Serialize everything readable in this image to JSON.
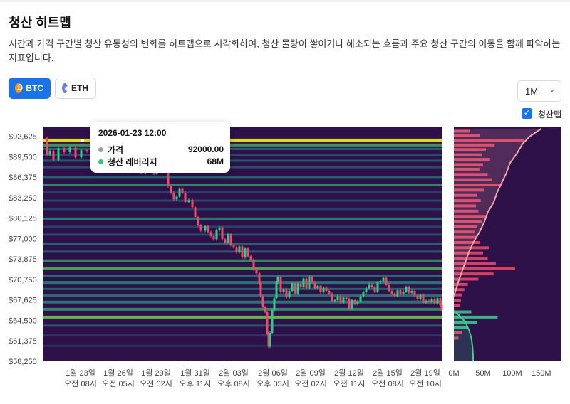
{
  "header": {
    "title": "청산 히트맵",
    "description": "시간과 가격 구간별 청산 유동성의 변화를 히트맵으로 시각화하여, 청산 물량이 쌓이거나 해소되는 흐름과 주요 청산 구간의 이동을 함께 파악하는 지표입니다."
  },
  "controls": {
    "coins": [
      {
        "label": "BTC",
        "icon": "btc-icon",
        "active": true
      },
      {
        "label": "ETH",
        "icon": "eth-icon",
        "active": false
      }
    ],
    "range": {
      "selected": "1M",
      "icon": "chevron-down-icon"
    },
    "toggle": {
      "label": "청산맵",
      "checked": true
    }
  },
  "colors": {
    "primary": "#1a73e8",
    "heat_background": "#2e1148",
    "heat_high": "#f4f01c",
    "candle_up": "#36c987",
    "candle_down": "#f04a6a",
    "profile_bar": "#f04a6a",
    "cum_line": "#f2a9a9",
    "cum_line_low": "#3ccf8f"
  },
  "tooltip": {
    "time": "2026-01-23 12:00",
    "rows": [
      {
        "label": "가격",
        "value": "92000.00",
        "color": "#a0a0a0"
      },
      {
        "label": "청산 레버리지",
        "value": "68M",
        "color": "#2ecc71"
      }
    ]
  },
  "chart_data": [
    {
      "type": "heatmap",
      "title": "",
      "y_axis": {
        "min": 58250,
        "max": 94000,
        "ticks": [
          "$92,625",
          "$89,500",
          "$86,375",
          "$83,250",
          "$80,125",
          "$77,000",
          "$73,875",
          "$70,750",
          "$67,625",
          "$64,500",
          "$61,375",
          "$58,250"
        ],
        "tick_values": [
          92625,
          89500,
          86375,
          83250,
          80125,
          77000,
          73875,
          70750,
          67625,
          64500,
          61375,
          58250
        ]
      },
      "x_axis": {
        "ticks": [
          {
            "date": "1월 23일",
            "time": "오전 08시"
          },
          {
            "date": "1월 26일",
            "time": "오전 05시"
          },
          {
            "date": "1월 29일",
            "time": "오전 02시"
          },
          {
            "date": "1월 31일",
            "time": "오후 11시"
          },
          {
            "date": "2월 03일",
            "time": "오후 08시"
          },
          {
            "date": "2월 06일",
            "time": "오후 05시"
          },
          {
            "date": "2월 09일",
            "time": "오전 02시"
          },
          {
            "date": "2월 12일",
            "time": "오전 11시"
          },
          {
            "date": "2월 15일",
            "time": "오전 08시"
          },
          {
            "date": "2월 19일",
            "time": "오전 10시"
          }
        ]
      },
      "price_path": [
        [
          0,
          92400
        ],
        [
          6,
          89800
        ],
        [
          10,
          90400
        ],
        [
          15,
          89000
        ],
        [
          22,
          90800
        ],
        [
          30,
          90200
        ],
        [
          38,
          90900
        ],
        [
          46,
          89400
        ],
        [
          54,
          90500
        ],
        [
          62,
          90300
        ],
        [
          70,
          89700
        ],
        [
          78,
          90000
        ],
        [
          86,
          89100
        ],
        [
          94,
          89600
        ],
        [
          102,
          89200
        ],
        [
          110,
          88400
        ],
        [
          118,
          87500
        ],
        [
          124,
          88000
        ],
        [
          132,
          87700
        ],
        [
          138,
          87000
        ],
        [
          144,
          87300
        ],
        [
          150,
          87600
        ],
        [
          156,
          86900
        ],
        [
          160,
          87700
        ],
        [
          166,
          88200
        ],
        [
          172,
          87600
        ],
        [
          176,
          85000
        ],
        [
          180,
          84000
        ],
        [
          184,
          83000
        ],
        [
          188,
          83400
        ],
        [
          192,
          84600
        ],
        [
          196,
          84000
        ],
        [
          200,
          82600
        ],
        [
          205,
          82900
        ],
        [
          210,
          81800
        ],
        [
          214,
          80300
        ],
        [
          218,
          79000
        ],
        [
          222,
          78200
        ],
        [
          228,
          78900
        ],
        [
          232,
          78000
        ],
        [
          236,
          77400
        ],
        [
          240,
          76900
        ],
        [
          244,
          78300
        ],
        [
          248,
          78700
        ],
        [
          252,
          76900
        ],
        [
          256,
          76400
        ],
        [
          260,
          77700
        ],
        [
          264,
          76000
        ],
        [
          268,
          75700
        ],
        [
          272,
          74900
        ],
        [
          276,
          75800
        ],
        [
          280,
          74100
        ],
        [
          284,
          75500
        ],
        [
          288,
          74300
        ],
        [
          292,
          73800
        ],
        [
          296,
          72300
        ],
        [
          300,
          71700
        ],
        [
          304,
          70200
        ],
        [
          306,
          68200
        ],
        [
          309,
          66500
        ],
        [
          312,
          65800
        ],
        [
          315,
          62500
        ],
        [
          317,
          60500
        ],
        [
          319,
          62600
        ],
        [
          322,
          66100
        ],
        [
          325,
          67900
        ],
        [
          328,
          70300
        ],
        [
          330,
          71100
        ],
        [
          334,
          68800
        ],
        [
          338,
          69200
        ],
        [
          342,
          68000
        ],
        [
          346,
          69000
        ],
        [
          350,
          70200
        ],
        [
          354,
          68600
        ],
        [
          358,
          70100
        ],
        [
          362,
          69600
        ],
        [
          366,
          70900
        ],
        [
          370,
          69400
        ],
        [
          374,
          71200
        ],
        [
          378,
          70300
        ],
        [
          382,
          69400
        ],
        [
          386,
          69800
        ],
        [
          390,
          68800
        ],
        [
          394,
          69500
        ],
        [
          398,
          69000
        ],
        [
          402,
          68600
        ],
        [
          406,
          67500
        ],
        [
          410,
          67600
        ],
        [
          414,
          68200
        ],
        [
          418,
          67200
        ],
        [
          422,
          68000
        ],
        [
          426,
          67800
        ],
        [
          430,
          66300
        ],
        [
          434,
          67600
        ],
        [
          438,
          67000
        ],
        [
          442,
          67400
        ],
        [
          446,
          68200
        ],
        [
          450,
          68800
        ],
        [
          454,
          69400
        ],
        [
          458,
          70000
        ],
        [
          462,
          69600
        ],
        [
          466,
          68900
        ],
        [
          470,
          70300
        ],
        [
          474,
          70500
        ],
        [
          478,
          71000
        ],
        [
          482,
          70000
        ],
        [
          486,
          69000
        ],
        [
          490,
          68600
        ],
        [
          494,
          68200
        ],
        [
          498,
          69100
        ],
        [
          502,
          68500
        ],
        [
          506,
          68900
        ],
        [
          510,
          69600
        ],
        [
          514,
          68700
        ],
        [
          518,
          69000
        ],
        [
          522,
          68300
        ],
        [
          526,
          67700
        ],
        [
          530,
          68400
        ],
        [
          534,
          67200
        ],
        [
          538,
          67500
        ],
        [
          542,
          67300
        ],
        [
          546,
          67800
        ],
        [
          550,
          67100
        ],
        [
          554,
          67900
        ],
        [
          558,
          66800
        ],
        [
          560,
          66100
        ]
      ],
      "bands": [
        {
          "price": 92000,
          "intensity": 1.0
        },
        {
          "price": 91300,
          "intensity": 0.65
        },
        {
          "price": 90700,
          "intensity": 0.45
        },
        {
          "price": 89800,
          "intensity": 0.35
        },
        {
          "price": 88900,
          "intensity": 0.4
        },
        {
          "price": 87900,
          "intensity": 0.35
        },
        {
          "price": 86400,
          "intensity": 0.45
        },
        {
          "price": 85200,
          "intensity": 0.6
        },
        {
          "price": 84100,
          "intensity": 0.3
        },
        {
          "price": 82800,
          "intensity": 0.35
        },
        {
          "price": 81500,
          "intensity": 0.3
        },
        {
          "price": 80000,
          "intensity": 0.55
        },
        {
          "price": 78800,
          "intensity": 0.3
        },
        {
          "price": 77600,
          "intensity": 0.35
        },
        {
          "price": 76200,
          "intensity": 0.45
        },
        {
          "price": 75000,
          "intensity": 0.4
        },
        {
          "price": 73600,
          "intensity": 0.6
        },
        {
          "price": 72400,
          "intensity": 0.7
        },
        {
          "price": 71300,
          "intensity": 0.5
        },
        {
          "price": 70300,
          "intensity": 0.55
        },
        {
          "price": 69300,
          "intensity": 0.45
        },
        {
          "price": 68300,
          "intensity": 0.5
        },
        {
          "price": 67300,
          "intensity": 0.55
        },
        {
          "price": 66200,
          "intensity": 0.6
        },
        {
          "price": 65000,
          "intensity": 0.8
        },
        {
          "price": 63700,
          "intensity": 0.4
        },
        {
          "price": 62200,
          "intensity": 0.25
        },
        {
          "price": 60600,
          "intensity": 0.2
        }
      ]
    },
    {
      "type": "bar",
      "orientation": "horizontal",
      "title": "",
      "x_axis": {
        "ticks": [
          "0M",
          "50M",
          "100M",
          "150M"
        ],
        "tick_values": [
          0,
          50,
          100,
          150
        ],
        "max": 160
      },
      "profile": [
        {
          "price": 93400,
          "value": 28
        },
        {
          "price": 92800,
          "value": 45
        },
        {
          "price": 92000,
          "value": 120
        },
        {
          "price": 91300,
          "value": 70
        },
        {
          "price": 90600,
          "value": 55
        },
        {
          "price": 89800,
          "value": 48
        },
        {
          "price": 89100,
          "value": 62
        },
        {
          "price": 88300,
          "value": 50
        },
        {
          "price": 87600,
          "value": 44
        },
        {
          "price": 86800,
          "value": 58
        },
        {
          "price": 86000,
          "value": 66
        },
        {
          "price": 85200,
          "value": 80
        },
        {
          "price": 84400,
          "value": 52
        },
        {
          "price": 83600,
          "value": 40
        },
        {
          "price": 82800,
          "value": 46
        },
        {
          "price": 82000,
          "value": 38
        },
        {
          "price": 81200,
          "value": 42
        },
        {
          "price": 80400,
          "value": 55
        },
        {
          "price": 79600,
          "value": 48
        },
        {
          "price": 78800,
          "value": 40
        },
        {
          "price": 78000,
          "value": 36
        },
        {
          "price": 77200,
          "value": 38
        },
        {
          "price": 76400,
          "value": 45
        },
        {
          "price": 75600,
          "value": 60
        },
        {
          "price": 74800,
          "value": 50
        },
        {
          "price": 74000,
          "value": 58
        },
        {
          "price": 73200,
          "value": 72
        },
        {
          "price": 72400,
          "value": 105
        },
        {
          "price": 71600,
          "value": 68
        },
        {
          "price": 70800,
          "value": 42
        },
        {
          "price": 70000,
          "value": 24
        },
        {
          "price": 69200,
          "value": 18
        },
        {
          "price": 68400,
          "value": 14
        },
        {
          "price": 67600,
          "value": 12
        },
        {
          "price": 66800,
          "value": 10
        },
        {
          "price": 65800,
          "value": 30
        },
        {
          "price": 65000,
          "value": 75
        },
        {
          "price": 64200,
          "value": 40
        },
        {
          "price": 63400,
          "value": 22
        },
        {
          "price": 62600,
          "value": 14
        },
        {
          "price": 61800,
          "value": 8
        }
      ],
      "cumulative_upper": [
        [
          93800,
          150
        ],
        [
          92600,
          130
        ],
        [
          91500,
          118
        ],
        [
          90000,
          108
        ],
        [
          88500,
          96
        ],
        [
          87000,
          90
        ],
        [
          85500,
          82
        ],
        [
          84000,
          74
        ],
        [
          82500,
          68
        ],
        [
          81000,
          58
        ],
        [
          79500,
          52
        ],
        [
          78000,
          44
        ],
        [
          76500,
          34
        ],
        [
          75000,
          26
        ],
        [
          73500,
          20
        ],
        [
          72000,
          14
        ],
        [
          70500,
          8
        ],
        [
          69300,
          4
        ],
        [
          68200,
          0
        ]
      ],
      "cumulative_lower": [
        [
          66000,
          0
        ],
        [
          65200,
          10
        ],
        [
          64200,
          20
        ],
        [
          63000,
          26
        ],
        [
          61800,
          30
        ],
        [
          60500,
          32
        ],
        [
          59200,
          33
        ],
        [
          58250,
          33
        ]
      ]
    }
  ]
}
